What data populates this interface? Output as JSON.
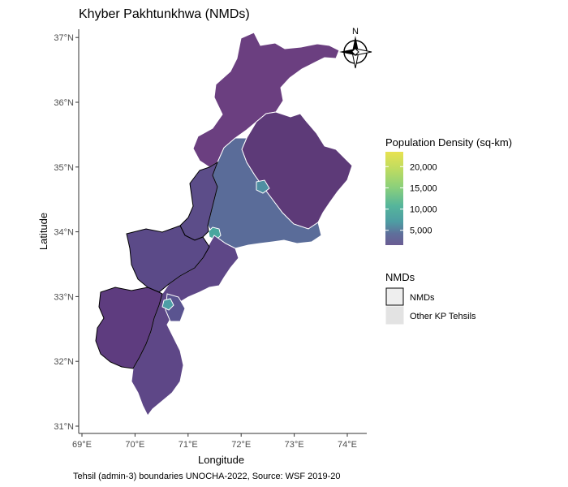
{
  "title": "Khyber Pakhtunkhwa (NMDs)",
  "caption": "Tehsil (admin-3) boundaries UNOCHA-2022, Source: WSF 2019-20",
  "compass_label": "N",
  "colors": {
    "background": "#ffffff",
    "axis": "#333333",
    "low_density": "#6a3d7c",
    "mid_density": "#5a6a9a",
    "nmd_border": "#000000",
    "kp_border": "#ffffff"
  },
  "chart_data": {
    "type": "choropleth",
    "title": "Khyber Pakhtunkhwa (NMDs)",
    "xlabel": "Longitude",
    "ylabel": "Latitude",
    "xlim": [
      69,
      74.4
    ],
    "ylim": [
      30.9,
      37.2
    ],
    "x_ticks": [
      {
        "value": 69,
        "label": "69°E"
      },
      {
        "value": 70,
        "label": "70°E"
      },
      {
        "value": 71,
        "label": "71°E"
      },
      {
        "value": 72,
        "label": "72°E"
      },
      {
        "value": 73,
        "label": "73°E"
      },
      {
        "value": 74,
        "label": "74°E"
      }
    ],
    "y_ticks": [
      {
        "value": 31,
        "label": "31°N"
      },
      {
        "value": 32,
        "label": "32°N"
      },
      {
        "value": 33,
        "label": "33°N"
      },
      {
        "value": 34,
        "label": "34°N"
      },
      {
        "value": 35,
        "label": "35°N"
      },
      {
        "value": 36,
        "label": "36°N"
      },
      {
        "value": 37,
        "label": "37°N"
      }
    ],
    "grid": false,
    "legend_position": "right",
    "density_legend": {
      "title": "Population Density (sq-km)",
      "breaks": [
        {
          "value": 20000,
          "label": "20,000"
        },
        {
          "value": 15000,
          "label": "15,000"
        },
        {
          "value": 10000,
          "label": "10,000"
        },
        {
          "value": 5000,
          "label": "5,000"
        }
      ],
      "color_stops": [
        "#e8e251",
        "#bfdc60",
        "#8bd07b",
        "#55b59b",
        "#4e9da3",
        "#5f6f9b",
        "#6a5c93"
      ]
    },
    "nmd_legend": {
      "title": "NMDs",
      "items": [
        {
          "label": "NMDs",
          "fill": "#eeeeee",
          "stroke": "#000000"
        },
        {
          "label": "Other KP Tehsils",
          "fill": "#e3e3e3",
          "stroke": "#e3e3e3"
        }
      ]
    }
  }
}
